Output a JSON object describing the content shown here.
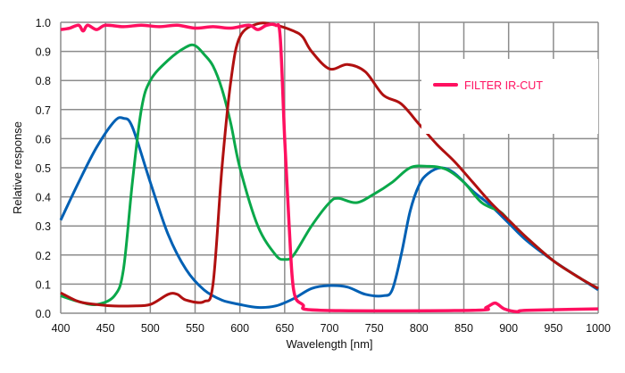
{
  "chart_data": {
    "type": "line",
    "title": "",
    "xlabel": "Wavelength [nm]",
    "ylabel": "Relative response",
    "xlim": [
      400,
      1000
    ],
    "ylim": [
      0,
      1.0
    ],
    "xticks": [
      "400",
      "450",
      "500",
      "550",
      "600",
      "650",
      "700",
      "750",
      "800",
      "850",
      "900",
      "950",
      "1000"
    ],
    "yticks": [
      "0.0",
      "0.1",
      "0.2",
      "0.3",
      "0.4",
      "0.5",
      "0.6",
      "0.7",
      "0.8",
      "0.9",
      "1.0"
    ],
    "grid": true,
    "legend": {
      "placement": "top-right",
      "entries": [
        "FILTER IR-CUT"
      ]
    },
    "series": [
      {
        "name": "",
        "color": "#0060b4",
        "x": [
          400,
          420,
          440,
          460,
          470,
          480,
          500,
          520,
          540,
          560,
          580,
          600,
          620,
          640,
          660,
          680,
          700,
          720,
          740,
          760,
          770,
          780,
          790,
          800,
          810,
          825,
          840,
          860,
          880,
          900,
          920,
          950,
          980,
          1000
        ],
        "y": [
          0.32,
          0.45,
          0.57,
          0.66,
          0.67,
          0.64,
          0.45,
          0.27,
          0.15,
          0.08,
          0.045,
          0.03,
          0.02,
          0.025,
          0.05,
          0.085,
          0.095,
          0.09,
          0.065,
          0.06,
          0.08,
          0.2,
          0.35,
          0.44,
          0.48,
          0.5,
          0.48,
          0.42,
          0.37,
          0.31,
          0.25,
          0.18,
          0.12,
          0.08
        ]
      },
      {
        "name": "",
        "color": "#0aa84a",
        "x": [
          400,
          420,
          440,
          460,
          470,
          480,
          490,
          500,
          520,
          540,
          550,
          560,
          570,
          580,
          590,
          600,
          620,
          640,
          650,
          660,
          680,
          700,
          710,
          730,
          750,
          770,
          790,
          810,
          830,
          850,
          870,
          890,
          900,
          920,
          950,
          980,
          1000
        ],
        "y": [
          0.06,
          0.04,
          0.03,
          0.06,
          0.15,
          0.45,
          0.7,
          0.8,
          0.87,
          0.915,
          0.92,
          0.89,
          0.85,
          0.77,
          0.65,
          0.5,
          0.3,
          0.2,
          0.185,
          0.2,
          0.3,
          0.38,
          0.395,
          0.38,
          0.41,
          0.45,
          0.5,
          0.505,
          0.495,
          0.45,
          0.38,
          0.35,
          0.32,
          0.26,
          0.18,
          0.12,
          0.085
        ]
      },
      {
        "name": "",
        "color": "#b01010",
        "x": [
          400,
          420,
          440,
          460,
          480,
          500,
          520,
          530,
          540,
          560,
          570,
          580,
          590,
          600,
          620,
          640,
          660,
          670,
          680,
          700,
          720,
          740,
          760,
          780,
          800,
          820,
          840,
          860,
          880,
          900,
          920,
          950,
          980,
          1000
        ],
        "y": [
          0.07,
          0.04,
          0.03,
          0.025,
          0.025,
          0.03,
          0.065,
          0.065,
          0.045,
          0.04,
          0.1,
          0.5,
          0.8,
          0.95,
          0.995,
          0.99,
          0.97,
          0.95,
          0.9,
          0.84,
          0.855,
          0.83,
          0.75,
          0.72,
          0.65,
          0.58,
          0.52,
          0.45,
          0.38,
          0.32,
          0.26,
          0.18,
          0.12,
          0.085
        ]
      },
      {
        "name": "FILTER IR-CUT",
        "color": "#ff1060",
        "x": [
          400,
          410,
          420,
          425,
          430,
          440,
          450,
          470,
          490,
          510,
          530,
          550,
          570,
          590,
          610,
          620,
          630,
          640,
          645,
          650,
          655,
          660,
          670,
          690,
          860,
          875,
          885,
          895,
          910,
          920,
          1000
        ],
        "y": [
          0.975,
          0.98,
          0.99,
          0.97,
          0.99,
          0.975,
          0.99,
          0.985,
          0.99,
          0.985,
          0.99,
          0.98,
          0.985,
          0.98,
          0.99,
          0.975,
          0.99,
          0.99,
          0.95,
          0.6,
          0.3,
          0.08,
          0.03,
          0.01,
          0.01,
          0.02,
          0.035,
          0.015,
          0.005,
          0.01,
          0.015
        ]
      }
    ]
  }
}
